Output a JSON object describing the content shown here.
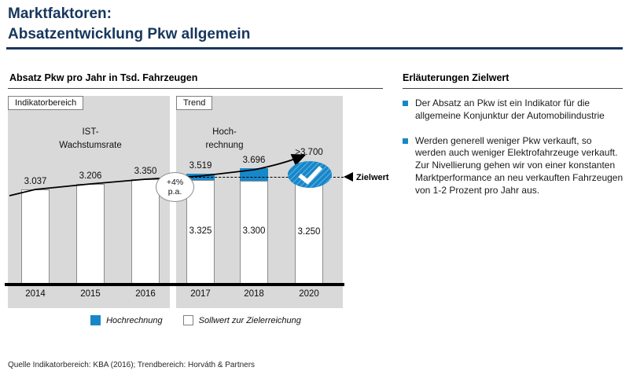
{
  "slide": {
    "title_line1": "Marktfaktoren:",
    "title_line2": "Absatzentwicklung Pkw allgemein",
    "footer": "Quelle Indikatorbereich: KBA (2016); Trendbereich: Horváth & Partners"
  },
  "colors": {
    "accent_blue": "#1887c9",
    "title_navy": "#17365d",
    "panel_gray": "#d9d9d9"
  },
  "chart": {
    "title": "Absatz Pkw pro Jahr in Tsd. Fahrzeugen",
    "indicator_region_label": "Indikatorbereich",
    "trend_region_label": "Trend",
    "indicator_sublabel_line1": "IST-",
    "indicator_sublabel_line2": "Wachstumsrate",
    "trend_sublabel_line1": "Hoch-",
    "trend_sublabel_line2": "rechnung",
    "growth_line1": "+4%",
    "growth_line2": "p.a.",
    "zielwert_label": "Zielwert",
    "legend": {
      "hochrechnung": "Hochrechnung",
      "sollwert": "Sollwert zur Zielerreichung"
    }
  },
  "chart_data": {
    "type": "bar",
    "title": "Absatz Pkw pro Jahr in Tsd. Fahrzeugen",
    "unit": "Tsd. Fahrzeuge",
    "categories": [
      "2014",
      "2015",
      "2016",
      "2017",
      "2018",
      "2020"
    ],
    "series": [
      {
        "name": "IST (Indikatorbereich)",
        "values": [
          3037,
          3206,
          3350,
          null,
          null,
          null
        ]
      },
      {
        "name": "Sollwert zur Zielerreichung",
        "values": [
          null,
          null,
          null,
          3325,
          3300,
          3250
        ]
      },
      {
        "name": "Hochrechnung",
        "values": [
          null,
          null,
          null,
          3519,
          3696,
          3700
        ]
      }
    ],
    "labels": {
      "top": [
        "3.037",
        "3.206",
        "3.350",
        "3.519",
        "3.696",
        ">3.700"
      ],
      "inside": [
        null,
        null,
        null,
        "3.325",
        "3.300",
        "3.250"
      ]
    },
    "annotations": [
      "+4% p.a.",
      "Zielwert",
      "IST-Wachstumsrate",
      "Hochrechnung"
    ],
    "legend_position": "bottom",
    "grid": false
  },
  "explanation": {
    "heading": "Erläuterungen Zielwert",
    "bullets": [
      "Der Absatz an Pkw ist ein Indikator für die allgemeine Konjunktur der Automobilindustrie",
      "Werden generell weniger Pkw verkauft, so werden auch weniger Elektrofahrzeuge verkauft. Zur Nivellierung gehen wir von einer konstanten Marktperformance an neu verkauften Fahrzeugen von 1-2 Prozent pro Jahr aus."
    ]
  }
}
